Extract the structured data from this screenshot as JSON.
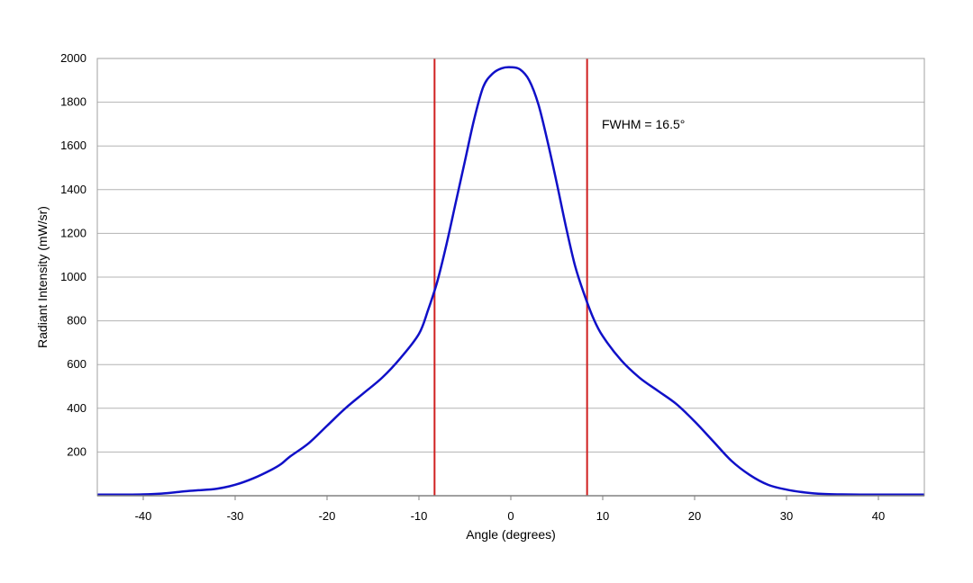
{
  "chart_data": {
    "type": "line",
    "title": "",
    "xlabel": "Angle (degrees)",
    "ylabel": "Radiant Intensity (mW/sr)",
    "xlim": [
      -45,
      45
    ],
    "ylim": [
      0,
      2000
    ],
    "xticks": [
      -40,
      -30,
      -20,
      -10,
      0,
      10,
      20,
      30,
      40
    ],
    "yticks": [
      200,
      400,
      600,
      800,
      1000,
      1200,
      1400,
      1600,
      1800,
      2000
    ],
    "grid": "horizontal",
    "legend": "none",
    "series": [
      {
        "color": "#1010c8",
        "x": [
          -45,
          -42,
          -40,
          -38,
          -36,
          -35,
          -34,
          -32,
          -30,
          -28,
          -26,
          -25,
          -24,
          -22,
          -20,
          -18,
          -16,
          -14,
          -12,
          -10,
          -9,
          -8,
          -7,
          -6,
          -5,
          -4,
          -3,
          -2,
          -1,
          0,
          1,
          2,
          3,
          4,
          5,
          6,
          7,
          8,
          9,
          10,
          12,
          14,
          16,
          18,
          20,
          22,
          24,
          26,
          28,
          30,
          32,
          34,
          36,
          38,
          40,
          42,
          45
        ],
        "y": [
          5,
          5,
          6,
          10,
          18,
          22,
          25,
          32,
          50,
          80,
          120,
          145,
          180,
          240,
          320,
          400,
          470,
          540,
          630,
          740,
          850,
          980,
          1150,
          1340,
          1530,
          1720,
          1870,
          1930,
          1955,
          1960,
          1950,
          1900,
          1790,
          1620,
          1430,
          1230,
          1050,
          920,
          810,
          730,
          620,
          540,
          480,
          420,
          340,
          250,
          160,
          95,
          50,
          28,
          15,
          8,
          6,
          5,
          5,
          5,
          5
        ]
      }
    ],
    "vlines": [
      {
        "x": -8.3,
        "color": "#d02020"
      },
      {
        "x": 8.3,
        "color": "#d02020"
      }
    ],
    "annotations": [
      {
        "text": "FWHM = 16.5°",
        "x": 10,
        "y": 1700
      }
    ]
  }
}
